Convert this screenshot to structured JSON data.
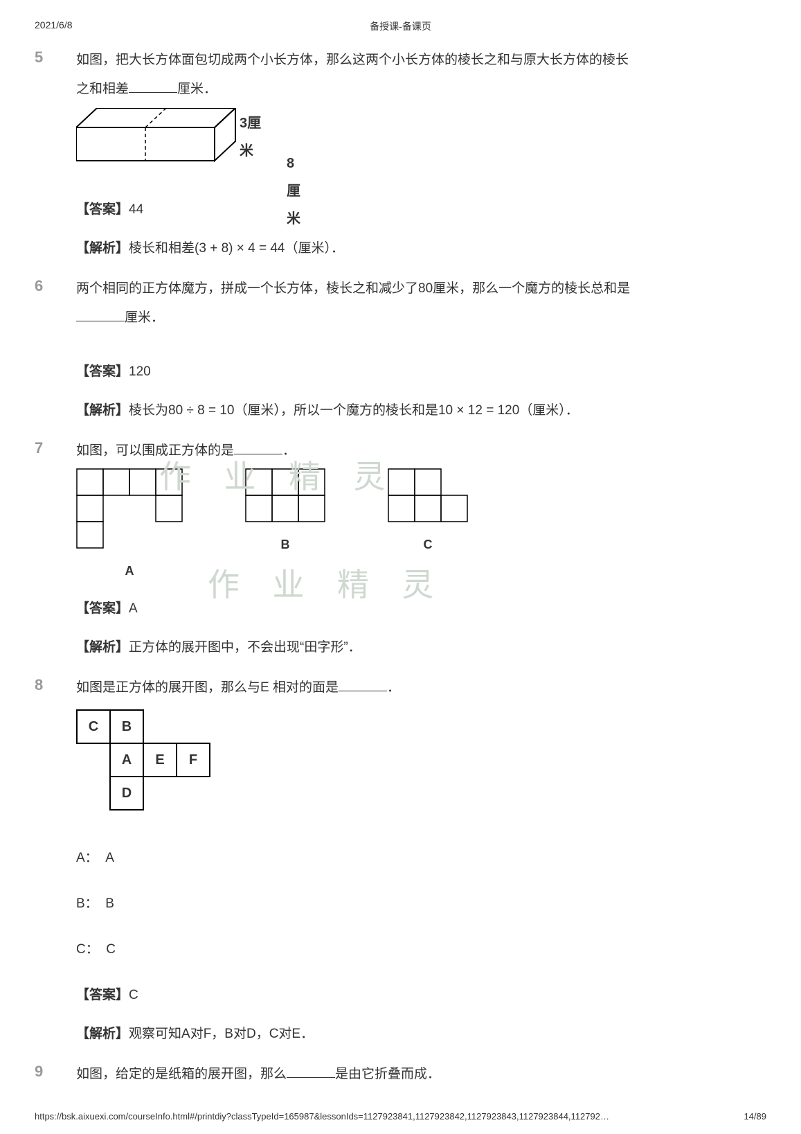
{
  "header": {
    "date": "2021/6/8",
    "title": "备授课-备课页"
  },
  "p5": {
    "num": "5",
    "q1": "如图，把大长方体面包切成两个小长方体，那么这两个小长方体的棱长之和与原大长方体的棱长",
    "q2a": "之和相差",
    "q2b": "厘米．",
    "dim1": "3厘米",
    "dim2": "8厘米",
    "ans_tag": "【答案】",
    "ans": "44",
    "exp_tag": "【解析】",
    "exp": "棱长和相差(3 + 8) × 4 = 44（厘米）．"
  },
  "p6": {
    "num": "6",
    "q1": "两个相同的正方体魔方，拼成一个长方体，棱长之和减少了80厘米，那么一个魔方的棱长总和是",
    "q2b": "厘米．",
    "ans_tag": "【答案】",
    "ans": "120",
    "exp_tag": "【解析】",
    "exp": "棱长为80 ÷ 8 = 10（厘米），所以一个魔方的棱长和是10 × 12 = 120（厘米）．"
  },
  "p7": {
    "num": "7",
    "q1a": "如图，可以围成正方体的是",
    "q1b": "．",
    "labels": {
      "a": "A",
      "b": "B",
      "c": "C"
    },
    "ans_tag": "【答案】",
    "ans": "A",
    "exp_tag": "【解析】",
    "exp": "正方体的展开图中，不会出现“田字形”．",
    "cell": 38,
    "netA": [
      [
        1,
        0
      ],
      [
        0,
        0
      ],
      [
        0,
        1
      ],
      [
        0,
        2
      ],
      [
        0,
        3
      ],
      [
        1,
        3
      ],
      [
        2,
        0
      ]
    ],
    "netB": [
      [
        0,
        0
      ],
      [
        0,
        1
      ],
      [
        0,
        2
      ],
      [
        1,
        0
      ],
      [
        1,
        1
      ],
      [
        1,
        2
      ]
    ],
    "netC": [
      [
        0,
        0
      ],
      [
        0,
        1
      ],
      [
        1,
        0
      ],
      [
        1,
        1
      ],
      [
        1,
        2
      ]
    ]
  },
  "p8": {
    "num": "8",
    "q1a": "如图是正方体的展开图，那么与E 相对的面是",
    "q1b": "．",
    "net": [
      [
        "C",
        "B",
        "",
        ""
      ],
      [
        "",
        "A",
        "E",
        "F"
      ],
      [
        "",
        "D",
        "",
        ""
      ]
    ],
    "optA_k": "A：",
    "optA_v": "A",
    "optB_k": "B：",
    "optB_v": "B",
    "optC_k": "C：",
    "optC_v": "C",
    "ans_tag": "【答案】",
    "ans": "C",
    "exp_tag": "【解析】",
    "exp": "观察可知A对F，B对D，C对E．"
  },
  "p9": {
    "num": "9",
    "q1a": "如图，给定的是纸箱的展开图，那么",
    "q1b": "是由它折叠而成．"
  },
  "watermark": "作 业 精 灵",
  "footer": {
    "url": "https://bsk.aixuexi.com/courseInfo.html#/printdiy?classTypeId=165987&lessonIds=1127923841,1127923842,1127923843,1127923844,112792…",
    "page": "14/89"
  },
  "colors": {
    "num": "#999999",
    "text": "#333333",
    "wm": "#cfd8d0"
  }
}
